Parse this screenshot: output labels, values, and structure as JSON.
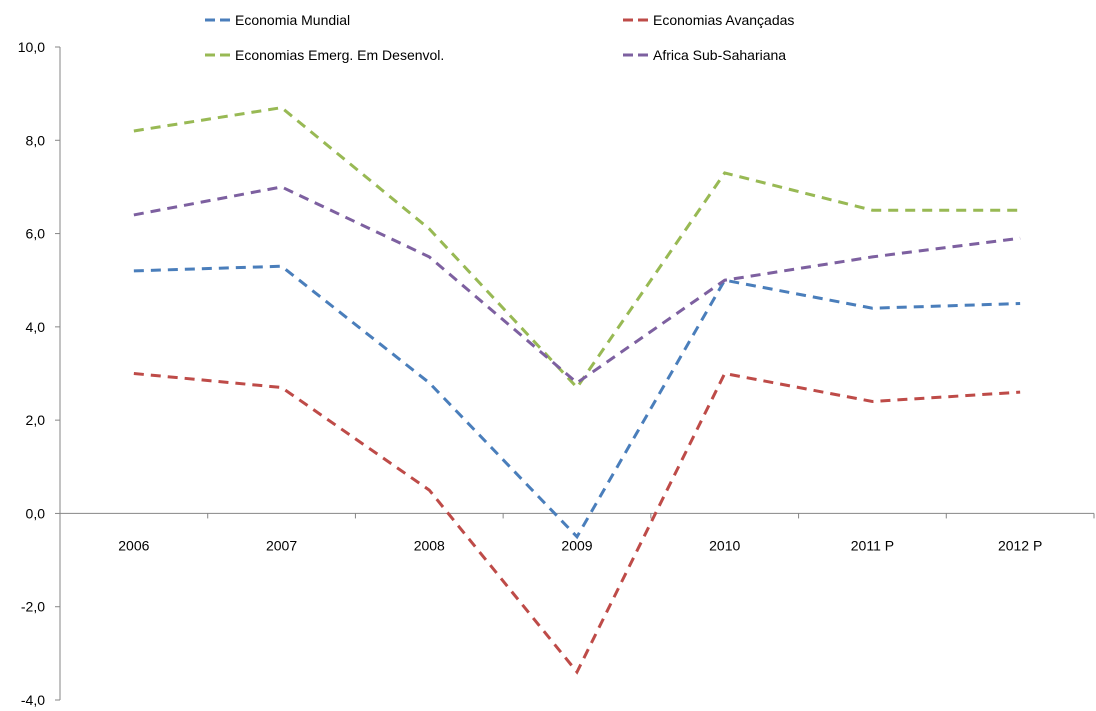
{
  "chart_data": {
    "type": "line",
    "title": "",
    "xlabel": "",
    "ylabel": "",
    "categories": [
      "2006",
      "2007",
      "2008",
      "2009",
      "2010",
      "2011 P",
      "2012 P"
    ],
    "ylim": [
      -4,
      10
    ],
    "yticks": [
      -4,
      -2,
      0,
      2,
      4,
      6,
      8,
      10
    ],
    "ytick_labels": [
      "-4,0",
      "-2,0",
      "0,0",
      "2,0",
      "4,0",
      "6,0",
      "8,0",
      "10,0"
    ],
    "grid": false,
    "legend_position": "top",
    "series": [
      {
        "name": "Economia Mundial",
        "color": "#4a7ebb",
        "values": [
          5.2,
          5.3,
          2.8,
          -0.5,
          5.0,
          4.4,
          4.5
        ]
      },
      {
        "name": "Economias Avançadas",
        "color": "#be4b48",
        "values": [
          3.0,
          2.7,
          0.5,
          -3.4,
          3.0,
          2.4,
          2.6
        ]
      },
      {
        "name": "Economias Emerg. Em Desenvol.",
        "color": "#98b954",
        "values": [
          8.2,
          8.7,
          6.1,
          2.7,
          7.3,
          6.5,
          6.5
        ]
      },
      {
        "name": "Africa Sub-Sahariana",
        "color": "#7d60a0",
        "values": [
          6.4,
          7.0,
          5.5,
          2.8,
          5.0,
          5.5,
          5.9
        ]
      }
    ]
  }
}
